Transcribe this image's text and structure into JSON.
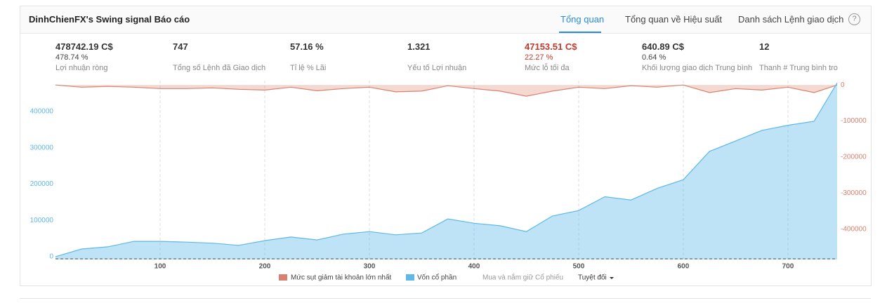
{
  "header": {
    "title": "DinhChienFX's Swing signal Báo cáo",
    "tabs": [
      "Tổng quan",
      "Tổng quan về Hiệu suất",
      "Danh sách Lệnh giao dịch"
    ],
    "help": "?"
  },
  "stats": [
    {
      "value": "478742.19 C$",
      "sub": "478.74 %",
      "label": "Lợi nhuận ròng"
    },
    {
      "value": "747",
      "label": "Tổng số Lệnh đã Giao dịch"
    },
    {
      "value": "57.16 %",
      "label": "Tỉ lệ % Lãi"
    },
    {
      "value": "1.321",
      "label": "Yếu tố Lợi nhuận"
    },
    {
      "value": "47153.51 C$",
      "sub": "22.27 %",
      "label": "Mức lỗ tối đa"
    },
    {
      "value": "640.89 C$",
      "sub": "0.64 %",
      "label": "Khối lượng giao dịch Trung bình"
    },
    {
      "value": "12",
      "label": "Thanh # Trung bình tro"
    }
  ],
  "chart_data": {
    "type": "area",
    "x": [
      0,
      25,
      50,
      75,
      100,
      125,
      150,
      175,
      200,
      225,
      250,
      275,
      300,
      325,
      350,
      375,
      400,
      425,
      450,
      475,
      500,
      525,
      550,
      575,
      600,
      625,
      650,
      675,
      700,
      725,
      747
    ],
    "series": [
      {
        "name": "Mức sụt giảm tài khoản lớn nhất",
        "color": "#d9806e",
        "axis": "y2",
        "values": [
          0,
          -6000,
          -4000,
          -6000,
          -10000,
          -10000,
          -8000,
          -12000,
          -14000,
          -6000,
          -16000,
          -10000,
          -6000,
          -19000,
          -17000,
          -2000,
          -10000,
          -17000,
          -31000,
          -17000,
          -6000,
          -10000,
          -2000,
          -6000,
          0,
          -21000,
          -10000,
          -14000,
          -6000,
          -21000,
          0
        ]
      },
      {
        "name": "Vốn cổ phần",
        "color": "#5fb8e8",
        "values": [
          0,
          21000,
          27000,
          42000,
          42000,
          40000,
          37000,
          31000,
          44000,
          54000,
          46000,
          62000,
          69000,
          60000,
          65000,
          104000,
          92000,
          85000,
          69000,
          112000,
          127000,
          165000,
          156000,
          188000,
          212000,
          290000,
          319000,
          348000,
          362000,
          373000,
          478742
        ]
      }
    ],
    "legend_extra": "Mua và nắm giữ Cổ phiếu",
    "mode": "Tuyệt đối",
    "xlim": [
      0,
      747
    ],
    "xticks": [
      100,
      200,
      300,
      400,
      500,
      600,
      700
    ],
    "ylim": [
      -8000,
      485000
    ],
    "yticks": [
      0,
      100000,
      200000,
      300000,
      400000
    ],
    "y2lim": [
      -484000,
      12000
    ],
    "y2ticks": [
      0,
      -100000,
      -200000,
      -300000,
      -400000
    ],
    "grid": true
  }
}
